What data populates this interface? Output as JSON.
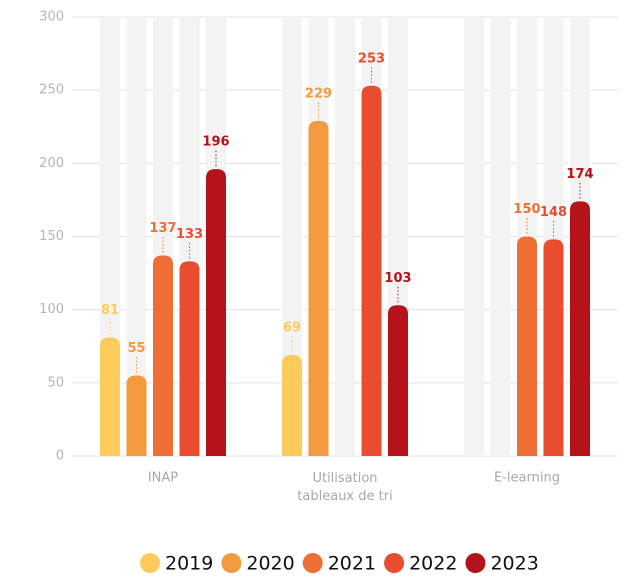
{
  "chart_data": {
    "type": "bar",
    "categories": [
      "INAP",
      "Utilisation tableaux de tri",
      "E-learning"
    ],
    "series": [
      {
        "name": "2019",
        "color": "#fdcb5c",
        "values": [
          81,
          69,
          null
        ]
      },
      {
        "name": "2020",
        "color": "#f39a3e",
        "values": [
          55,
          229,
          null
        ]
      },
      {
        "name": "2021",
        "color": "#ee6f35",
        "values": [
          137,
          null,
          150
        ]
      },
      {
        "name": "2022",
        "color": "#e84d2f",
        "values": [
          133,
          253,
          148
        ]
      },
      {
        "name": "2023",
        "color": "#b5121b",
        "values": [
          196,
          103,
          174
        ]
      }
    ],
    "ylim": [
      0,
      300
    ],
    "yticks": [
      0,
      50,
      100,
      150,
      200,
      250,
      300
    ],
    "grid": true,
    "legend": "bottom"
  }
}
